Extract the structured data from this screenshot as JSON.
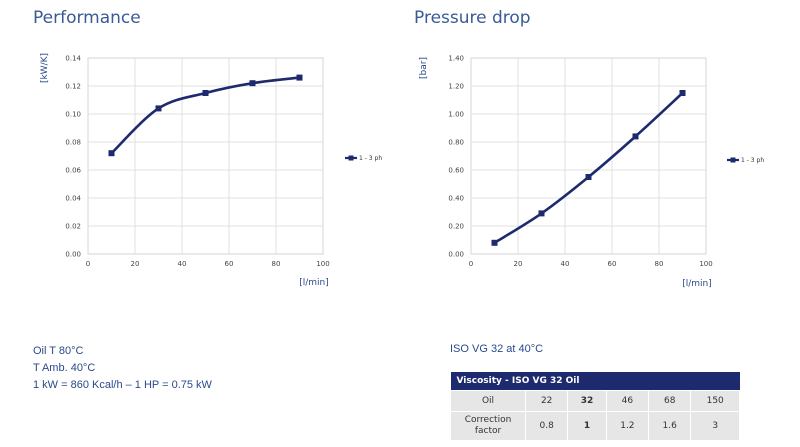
{
  "chart_data": [
    {
      "type": "line",
      "title": "Performance",
      "xlabel": "[l/min]",
      "ylabel": "[kW/K]",
      "xlim": [
        0,
        100
      ],
      "ylim": [
        0,
        0.14
      ],
      "x_ticks": [
        "0",
        "20",
        "40",
        "60",
        "80",
        "100"
      ],
      "y_ticks": [
        "0.00",
        "0.02",
        "0.04",
        "0.06",
        "0.08",
        "0.10",
        "0.12",
        "0.14"
      ],
      "grid": true,
      "legend": "right",
      "series": [
        {
          "name": "1 - 3 ph",
          "color": "#1e2a6e",
          "x": [
            10,
            30,
            50,
            70,
            90
          ],
          "y": [
            0.072,
            0.104,
            0.115,
            0.122,
            0.126
          ]
        }
      ]
    },
    {
      "type": "line",
      "title": "Pressure drop",
      "xlabel": "[l/min]",
      "ylabel": "[bar]",
      "xlim": [
        0,
        100
      ],
      "ylim": [
        0,
        1.4
      ],
      "x_ticks": [
        "0",
        "20",
        "40",
        "60",
        "80",
        "100"
      ],
      "y_ticks": [
        "0.00",
        "0.20",
        "0.40",
        "0.60",
        "0.80",
        "1.00",
        "1.20",
        "1.40"
      ],
      "grid": true,
      "legend": "right",
      "series": [
        {
          "name": "1 - 3 ph",
          "color": "#1e2a6e",
          "x": [
            10,
            30,
            50,
            70,
            90
          ],
          "y": [
            0.08,
            0.29,
            0.55,
            0.84,
            1.15
          ]
        }
      ]
    }
  ],
  "notes": {
    "oil_temp": "Oil T 80°C",
    "amb_temp": "T Amb. 40°C",
    "conversion": "1 kW = 860 Kcal/h – 1 HP = 0.75 kW"
  },
  "viscosity": {
    "heading": "ISO VG 32 at 40°C",
    "table_title": "Viscosity - ISO VG 32 Oil",
    "row1_label": "Oil",
    "row1_values": [
      "22",
      "32",
      "46",
      "68",
      "150"
    ],
    "row2_label_line1": "Correction",
    "row2_label_line2": "factor",
    "row2_values": [
      "0.8",
      "1",
      "1.2",
      "1.6",
      "3"
    ],
    "bold_index": 1
  }
}
